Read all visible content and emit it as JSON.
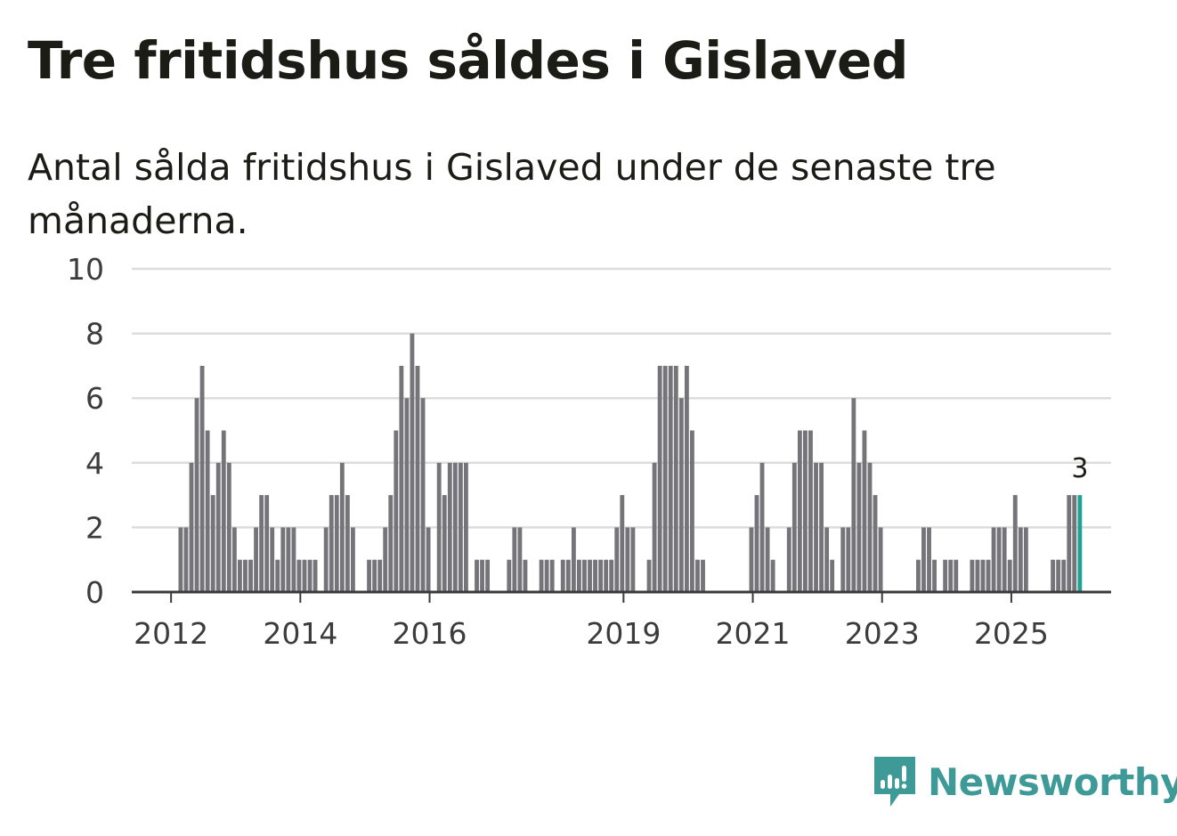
{
  "header": {
    "title": "Tre fritidshus såldes i Gislaved",
    "subtitle": "Antal sålda fritidshus i Gislaved under de senaste tre månaderna."
  },
  "brand": {
    "name": "Newsworthy",
    "icon": "newsworthy-logo-icon"
  },
  "colors": {
    "bar": "#757478",
    "highlight": "#20a196",
    "grid": "#dcdcdc",
    "axis": "#3a3a3a",
    "brand": "#3d9a97"
  },
  "chart_data": {
    "type": "bar",
    "title": "Tre fritidshus såldes i Gislaved",
    "subtitle": "Antal sålda fritidshus i Gislaved under de senaste tre månaderna.",
    "xlabel": "",
    "ylabel": "",
    "ylim": [
      0,
      10
    ],
    "yticks": [
      0,
      2,
      4,
      6,
      8,
      10
    ],
    "grid": true,
    "start_year": 2011.4,
    "step_years": 0.0833,
    "x_ticks": [
      {
        "label": "2012",
        "year": 2012
      },
      {
        "label": "2014",
        "year": 2014
      },
      {
        "label": "2016",
        "year": 2016
      },
      {
        "label": "2019",
        "year": 2019
      },
      {
        "label": "2021",
        "year": 2021
      },
      {
        "label": "2023",
        "year": 2023
      },
      {
        "label": "2025",
        "year": 2025
      }
    ],
    "values": [
      0,
      0,
      0,
      0,
      0,
      0,
      0,
      0,
      0,
      2,
      2,
      4,
      6,
      7,
      5,
      3,
      4,
      5,
      4,
      2,
      1,
      1,
      1,
      2,
      3,
      3,
      2,
      1,
      2,
      2,
      2,
      1,
      1,
      1,
      1,
      0,
      2,
      3,
      3,
      4,
      3,
      2,
      0,
      0,
      1,
      1,
      1,
      2,
      3,
      5,
      7,
      6,
      8,
      7,
      6,
      2,
      0,
      4,
      3,
      4,
      4,
      4,
      4,
      0,
      1,
      1,
      1,
      0,
      0,
      0,
      1,
      2,
      2,
      1,
      0,
      0,
      1,
      1,
      1,
      0,
      1,
      1,
      2,
      1,
      1,
      1,
      1,
      1,
      1,
      1,
      2,
      3,
      2,
      2,
      0,
      0,
      1,
      4,
      7,
      7,
      7,
      7,
      6,
      7,
      5,
      1,
      1,
      0,
      0,
      0,
      0,
      0,
      0,
      0,
      0,
      2,
      3,
      4,
      2,
      1,
      0,
      0,
      2,
      4,
      5,
      5,
      5,
      4,
      4,
      2,
      1,
      0,
      2,
      2,
      6,
      4,
      5,
      4,
      3,
      2,
      0,
      0,
      0,
      0,
      0,
      0,
      1,
      2,
      2,
      1,
      0,
      1,
      1,
      1,
      0,
      0,
      1,
      1,
      1,
      1,
      2,
      2,
      2,
      1,
      3,
      2,
      2,
      0,
      0,
      0,
      0,
      1,
      1,
      1,
      3,
      3,
      3
    ],
    "highlight_last": true,
    "last_label": "3"
  }
}
